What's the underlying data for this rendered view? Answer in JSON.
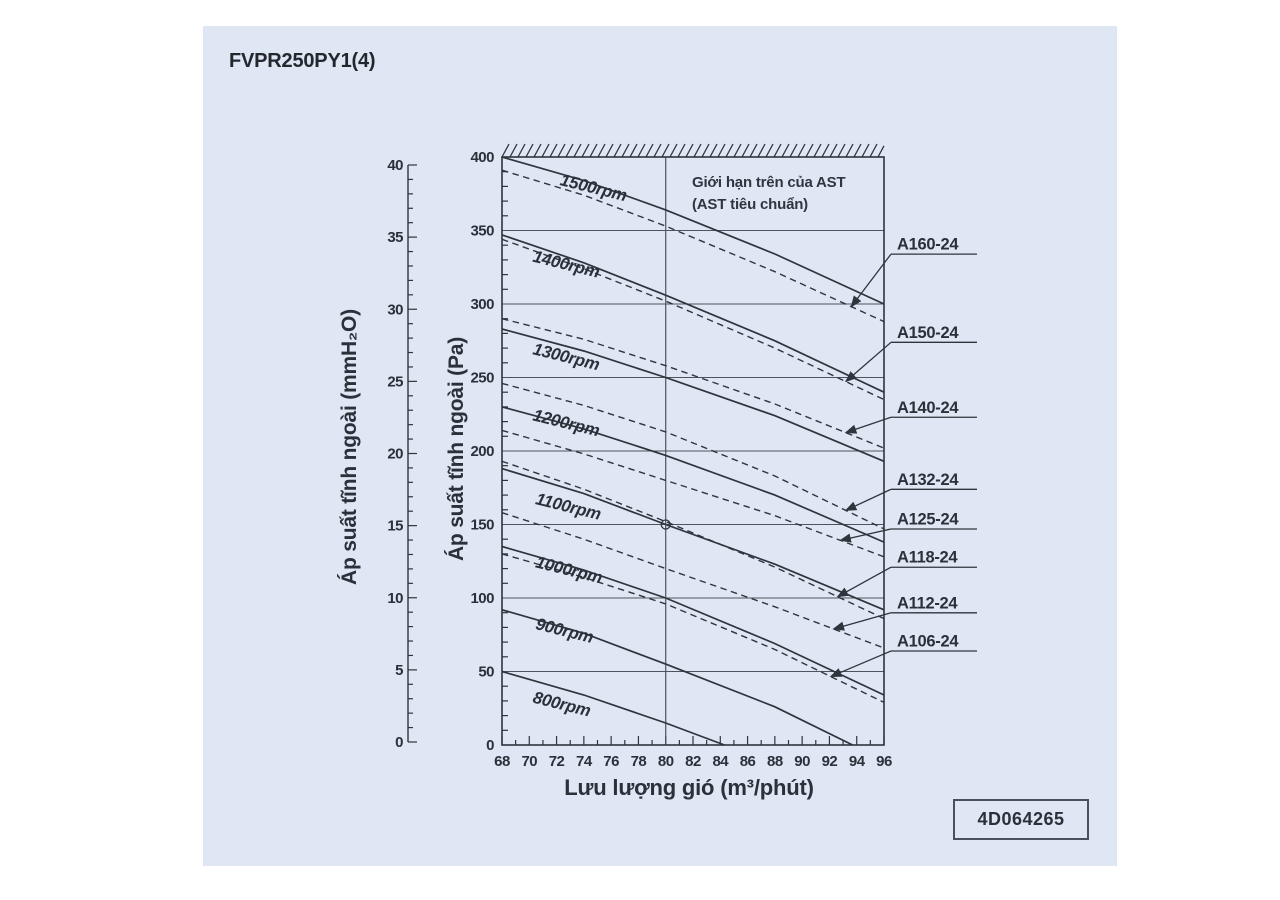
{
  "title": "FVPR250PY1(4)",
  "code_box": {
    "text": "4D064265"
  },
  "limit_note": {
    "line1": "Giới hạn trên của AST",
    "line2": "(AST tiêu chuẩn)"
  },
  "axes": {
    "left_mmh2o": {
      "title": "Áp suất tĩnh ngoài (mmH₂O)",
      "min": 0,
      "max": 40,
      "major_step": 5,
      "minor_step": 1,
      "tick_labels": [
        "0",
        "5",
        "10",
        "15",
        "20",
        "25",
        "30",
        "35",
        "40"
      ]
    },
    "pa": {
      "title": "Áp suất tĩnh ngoài (Pa)",
      "min": 0,
      "max": 400,
      "major_step": 50,
      "minor_step": 10,
      "tick_labels": [
        "0",
        "50",
        "100",
        "150",
        "200",
        "250",
        "300",
        "350",
        "400"
      ]
    },
    "x": {
      "title": "Lưu lượng gió (m³/phút)",
      "min": 68,
      "max": 96,
      "major_step": 2,
      "minor_step": 1,
      "tick_labels": [
        "68",
        "70",
        "72",
        "74",
        "76",
        "78",
        "80",
        "82",
        "84",
        "86",
        "88",
        "90",
        "92",
        "94",
        "96"
      ]
    }
  },
  "colors": {
    "panel": "#dee7f3",
    "ink": "#2f353d",
    "grid": "#4d545e",
    "text": "#2b313a"
  },
  "chart_data": {
    "type": "line",
    "title": "",
    "xlabel": "Lưu lượng gió (m³/phút)",
    "ylabel_left": "Áp suất tĩnh ngoài (mmH₂O)",
    "ylabel_right": "Áp suất tĩnh ngoài (Pa)",
    "x_axis": {
      "min": 68,
      "max": 96
    },
    "y_axis": {
      "min": 0,
      "max": 400
    },
    "grid": "horizontal-major",
    "upper_limit_hatch": {
      "from_pa": 400,
      "note": "Giới hạn trên của AST (AST tiêu chuẩn)"
    },
    "reference": {
      "vline_x": 80,
      "marker": [
        80,
        150
      ]
    },
    "series": [
      {
        "name": "800rpm",
        "style": "solid",
        "label": "800rpm",
        "label_pos": [
          70.2,
          29
        ],
        "points": [
          [
            68,
            50
          ],
          [
            74,
            34
          ],
          [
            80,
            15
          ],
          [
            84.3,
            0
          ]
        ]
      },
      {
        "name": "900rpm",
        "style": "solid",
        "label": "900rpm",
        "label_pos": [
          70.4,
          79
        ],
        "points": [
          [
            68,
            92
          ],
          [
            74,
            76
          ],
          [
            80,
            55
          ],
          [
            88,
            26
          ],
          [
            93.7,
            0
          ]
        ]
      },
      {
        "name": "1000rpm",
        "style": "solid",
        "label": "1000rpm",
        "label_pos": [
          70.4,
          121
        ],
        "points": [
          [
            68,
            135
          ],
          [
            74,
            119
          ],
          [
            80,
            100
          ],
          [
            88,
            69
          ],
          [
            96,
            34
          ]
        ]
      },
      {
        "name": "1100rpm",
        "style": "solid",
        "label": "1100rpm",
        "label_pos": [
          70.4,
          164
        ],
        "points": [
          [
            68,
            188
          ],
          [
            74,
            171
          ],
          [
            80,
            150
          ],
          [
            88,
            123
          ],
          [
            96,
            92
          ]
        ]
      },
      {
        "name": "1200rpm",
        "style": "solid",
        "label": "1200rpm",
        "label_pos": [
          70.2,
          221
        ],
        "points": [
          [
            68,
            230
          ],
          [
            74,
            215
          ],
          [
            80,
            197
          ],
          [
            88,
            170
          ],
          [
            96,
            138
          ]
        ]
      },
      {
        "name": "1300rpm",
        "style": "solid",
        "label": "1300rpm",
        "label_pos": [
          70.2,
          266
        ],
        "points": [
          [
            68,
            283
          ],
          [
            74,
            268
          ],
          [
            80,
            250
          ],
          [
            88,
            224
          ],
          [
            96,
            193
          ]
        ]
      },
      {
        "name": "1400rpm",
        "style": "solid",
        "label": "1400rpm",
        "label_pos": [
          70.2,
          329
        ],
        "points": [
          [
            68,
            347
          ],
          [
            74,
            328
          ],
          [
            80,
            306
          ],
          [
            88,
            275
          ],
          [
            96,
            240
          ]
        ]
      },
      {
        "name": "1500rpm",
        "style": "solid",
        "label": "1500rpm",
        "label_pos": [
          72.2,
          381
        ],
        "points": [
          [
            68,
            400
          ],
          [
            74,
            384
          ],
          [
            80,
            364
          ],
          [
            88,
            334
          ],
          [
            96,
            300
          ]
        ]
      },
      {
        "name": "A106-24",
        "style": "dashed",
        "points": [
          [
            68,
            130
          ],
          [
            74,
            114
          ],
          [
            80,
            96
          ],
          [
            88,
            65
          ],
          [
            96,
            29
          ]
        ]
      },
      {
        "name": "A112-24",
        "style": "dashed",
        "points": [
          [
            68,
            158
          ],
          [
            74,
            140
          ],
          [
            80,
            120
          ],
          [
            88,
            94
          ],
          [
            96,
            66
          ]
        ]
      },
      {
        "name": "A118-24",
        "style": "dashed",
        "points": [
          [
            68,
            193
          ],
          [
            74,
            174
          ],
          [
            80,
            152
          ],
          [
            88,
            121
          ],
          [
            96,
            86
          ]
        ]
      },
      {
        "name": "A125-24",
        "style": "dashed",
        "points": [
          [
            68,
            214
          ],
          [
            74,
            198
          ],
          [
            80,
            180
          ],
          [
            88,
            156
          ],
          [
            96,
            128
          ]
        ]
      },
      {
        "name": "A132-24",
        "style": "dashed",
        "points": [
          [
            68,
            246
          ],
          [
            74,
            231
          ],
          [
            80,
            213
          ],
          [
            88,
            183
          ],
          [
            96,
            147
          ]
        ]
      },
      {
        "name": "A140-24",
        "style": "dashed",
        "points": [
          [
            68,
            290
          ],
          [
            74,
            276
          ],
          [
            80,
            258
          ],
          [
            88,
            232
          ],
          [
            96,
            202
          ]
        ]
      },
      {
        "name": "A150-24",
        "style": "dashed",
        "points": [
          [
            68,
            344
          ],
          [
            74,
            324
          ],
          [
            80,
            302
          ],
          [
            88,
            270
          ],
          [
            96,
            235
          ]
        ]
      },
      {
        "name": "A160-24",
        "style": "dashed",
        "points": [
          [
            68,
            391
          ],
          [
            74,
            374
          ],
          [
            80,
            353
          ],
          [
            88,
            322
          ],
          [
            96,
            288
          ]
        ]
      }
    ],
    "annotations": [
      {
        "text": "A160-24",
        "series": "A160-24",
        "label_pa": 337,
        "target_x": 93.6
      },
      {
        "text": "A150-24",
        "series": "A150-24",
        "label_pa": 277,
        "target_x": 93.2
      },
      {
        "text": "A140-24",
        "series": "A140-24",
        "label_pa": 226,
        "target_x": 93.2
      },
      {
        "text": "A132-24",
        "series": "A132-24",
        "label_pa": 177,
        "target_x": 93.2
      },
      {
        "text": "A125-24",
        "series": "A125-24",
        "label_pa": 150,
        "target_x": 92.8
      },
      {
        "text": "A118-24",
        "series": "A118-24",
        "label_pa": 124,
        "target_x": 92.6
      },
      {
        "text": "A112-24",
        "series": "A112-24",
        "label_pa": 93,
        "target_x": 92.3
      },
      {
        "text": "A106-24",
        "series": "A106-24",
        "label_pa": 67,
        "target_x": 92.1
      }
    ]
  }
}
